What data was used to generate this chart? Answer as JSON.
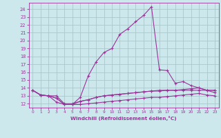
{
  "xlabel": "Windchill (Refroidissement éolien,°C)",
  "background_color": "#cce8ec",
  "grid_color": "#aac8cc",
  "line_color": "#993399",
  "x_values": [
    0,
    1,
    2,
    3,
    4,
    5,
    6,
    7,
    8,
    9,
    10,
    11,
    12,
    13,
    14,
    15,
    16,
    17,
    18,
    19,
    20,
    21,
    22,
    23
  ],
  "line1_y": [
    13.7,
    13.1,
    13.0,
    12.7,
    11.9,
    11.9,
    12.8,
    15.5,
    17.3,
    18.5,
    19.0,
    20.8,
    21.5,
    22.4,
    23.2,
    24.3,
    16.3,
    16.2,
    14.6,
    14.8,
    14.3,
    14.0,
    13.7,
    13.7
  ],
  "line2_y": [
    13.7,
    13.1,
    13.0,
    13.0,
    12.0,
    12.0,
    12.3,
    12.5,
    12.8,
    13.0,
    13.1,
    13.2,
    13.3,
    13.4,
    13.5,
    13.6,
    13.6,
    13.7,
    13.7,
    13.7,
    13.7,
    13.7,
    13.7,
    13.7
  ],
  "line3_y": [
    13.7,
    13.1,
    13.0,
    12.7,
    11.9,
    11.9,
    12.3,
    12.5,
    12.8,
    13.0,
    13.1,
    13.2,
    13.3,
    13.4,
    13.5,
    13.6,
    13.7,
    13.7,
    13.7,
    13.8,
    13.9,
    14.0,
    13.7,
    13.4
  ],
  "line4_y": [
    13.7,
    13.1,
    13.0,
    12.2,
    11.9,
    11.9,
    11.9,
    12.0,
    12.1,
    12.2,
    12.3,
    12.4,
    12.5,
    12.6,
    12.7,
    12.8,
    12.8,
    12.9,
    13.0,
    13.1,
    13.2,
    13.3,
    13.1,
    13.0
  ],
  "ylim": [
    11.5,
    24.8
  ],
  "yticks": [
    12,
    13,
    14,
    15,
    16,
    17,
    18,
    19,
    20,
    21,
    22,
    23,
    24
  ],
  "xlim": [
    -0.5,
    23.5
  ],
  "xticks": [
    0,
    1,
    2,
    3,
    4,
    5,
    6,
    7,
    8,
    9,
    10,
    11,
    12,
    13,
    14,
    15,
    16,
    17,
    18,
    19,
    20,
    21,
    22,
    23
  ]
}
